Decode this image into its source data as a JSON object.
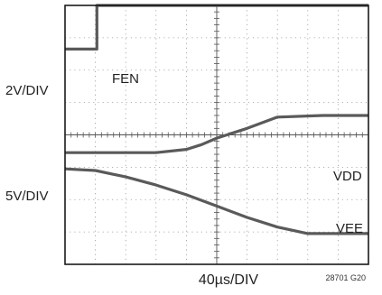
{
  "chart_data": {
    "type": "line",
    "title": "",
    "grid": true,
    "grid_divisions": {
      "x": 10,
      "y": 8
    },
    "xlabel": "40µs/DIV",
    "figure_id": "28701 G20",
    "channels": [
      {
        "scale_label": "2V/DIV",
        "traces": [
          "FEN"
        ]
      },
      {
        "scale_label": "5V/DIV",
        "traces": [
          "VDD",
          "VEE"
        ]
      }
    ],
    "xlim": [
      0,
      10
    ],
    "ylim": [
      0,
      8
    ],
    "series": [
      {
        "name": "FEN",
        "x": [
          0,
          1.05,
          1.05,
          1.2,
          10
        ],
        "y": [
          6.65,
          6.65,
          8.0,
          8.0,
          8.0
        ]
      },
      {
        "name": "VDD",
        "x": [
          0,
          3.0,
          4.0,
          4.5,
          5.0,
          6.0,
          7.0,
          8.5,
          10
        ],
        "y": [
          3.45,
          3.45,
          3.55,
          3.7,
          3.9,
          4.2,
          4.55,
          4.6,
          4.6
        ]
      },
      {
        "name": "VEE",
        "x": [
          0,
          1.0,
          2.0,
          3.0,
          4.0,
          5.0,
          6.0,
          7.0,
          8.0,
          8.5,
          10
        ],
        "y": [
          2.95,
          2.9,
          2.7,
          2.45,
          2.15,
          1.8,
          1.45,
          1.15,
          0.95,
          0.95,
          0.95
        ]
      }
    ],
    "trace_labels": [
      "FEN",
      "VDD",
      "VEE"
    ]
  }
}
